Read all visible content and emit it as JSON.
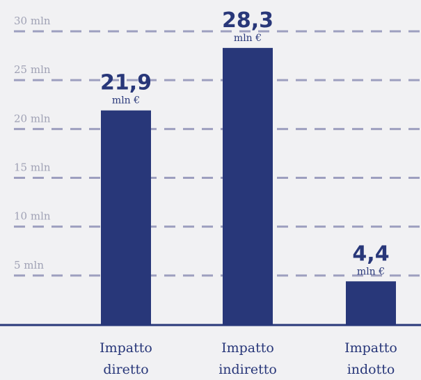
{
  "chart_data": {
    "type": "bar",
    "categories": [
      [
        "Impatto",
        "diretto"
      ],
      [
        "Impatto",
        "indiretto"
      ],
      [
        "Impatto",
        "indotto"
      ]
    ],
    "values": [
      21.9,
      28.3,
      4.4
    ],
    "value_labels": [
      "21,9",
      "28,3",
      "4,4"
    ],
    "value_unit": "mln €",
    "yticks": [
      5,
      10,
      15,
      20,
      25,
      30
    ],
    "ytick_labels": [
      "5 mln",
      "10 mln",
      "15 mln",
      "20 mln",
      "25 mln",
      "30 mln"
    ],
    "ylim": [
      0,
      30
    ],
    "grid": true,
    "grid_style": "dashed",
    "legend": "none",
    "title": "",
    "xlabel": "",
    "ylabel": ""
  },
  "colors": {
    "background": "#f1f1f3",
    "bar": "#283779",
    "grid": "#9d9fbf",
    "axis": "#283779",
    "tick_text": "#a0a2b5",
    "label_text": "#283779"
  }
}
